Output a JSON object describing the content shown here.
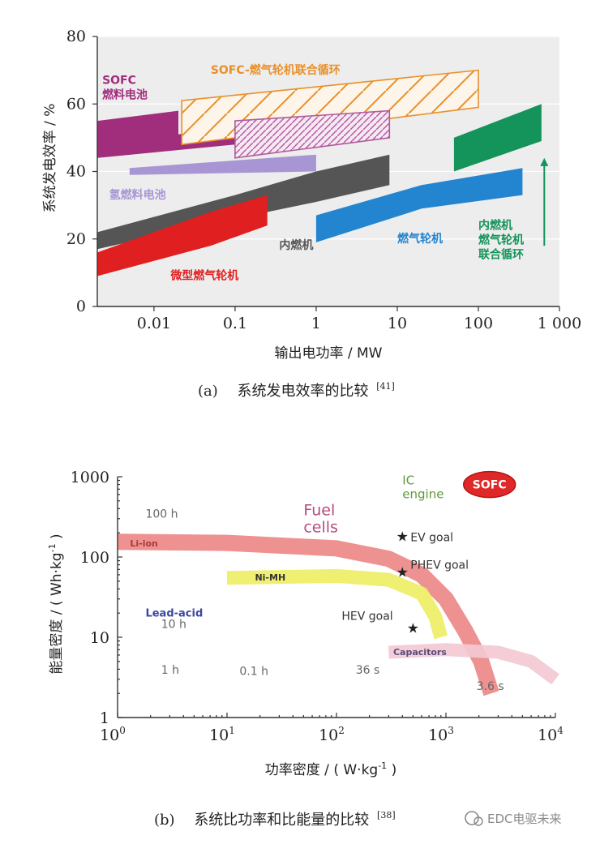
{
  "chart_data": [
    {
      "type": "area",
      "caption_prefix": "(a)",
      "caption": "系统发电效率的比较",
      "caption_ref": "[41]",
      "xlabel": "输出电功率 / MW",
      "ylabel": "系统发电效率 / %",
      "x_scale": "log",
      "xlim": [
        0.002,
        1000
      ],
      "ylim": [
        0,
        80
      ],
      "x_ticks": [
        {
          "value": 0.01,
          "label": "0.01"
        },
        {
          "value": 0.1,
          "label": "0.1"
        },
        {
          "value": 1,
          "label": "1"
        },
        {
          "value": 10,
          "label": "10"
        },
        {
          "value": 100,
          "label": "100"
        },
        {
          "value": 1000,
          "label": "1 000"
        }
      ],
      "y_ticks": [
        {
          "value": 0,
          "label": "0"
        },
        {
          "value": 20,
          "label": "20"
        },
        {
          "value": 40,
          "label": "40"
        },
        {
          "value": 60,
          "label": "60"
        },
        {
          "value": 80,
          "label": "80"
        }
      ],
      "grid": true,
      "series": [
        {
          "name": "SOFC燃料电池",
          "label_lines": [
            "SOFC",
            "燃料电池"
          ],
          "color": "#a12d7d",
          "style": "solid",
          "polygon": [
            [
              0.002,
              55
            ],
            [
              0.02,
              58
            ],
            [
              0.02,
              51
            ],
            [
              0.1,
              54
            ],
            [
              0.1,
              48
            ],
            [
              0.002,
              44
            ]
          ],
          "label_at": [
            0.0023,
            66
          ]
        },
        {
          "name": "SOFC-燃气轮机联合循环",
          "label_lines": [
            "SOFC-燃气轮机联合循环"
          ],
          "color": "#e8902a",
          "style": "hatch",
          "polygon": [
            [
              0.022,
              61
            ],
            [
              100,
              70
            ],
            [
              100,
              59
            ],
            [
              0.022,
              48
            ]
          ],
          "label_at": [
            0.05,
            69
          ]
        },
        {
          "name": "",
          "label_lines": [],
          "color": "#b25a9d",
          "style": "hatch",
          "polygon": [
            [
              0.1,
              55
            ],
            [
              8,
              58
            ],
            [
              8,
              50
            ],
            [
              0.1,
              44
            ]
          ],
          "label_at": null
        },
        {
          "name": "氢燃料电池",
          "label_lines": [
            "氢燃料电池"
          ],
          "color": "#a896d4",
          "style": "solid",
          "polygon": [
            [
              0.005,
              41
            ],
            [
              1,
              45
            ],
            [
              1,
              40
            ],
            [
              0.005,
              39
            ]
          ],
          "label_at": [
            0.0028,
            32
          ]
        },
        {
          "name": "内燃机",
          "label_lines": [
            "内燃机"
          ],
          "color": "#555555",
          "style": "solid",
          "polygon": [
            [
              0.002,
              22
            ],
            [
              0.1,
              33
            ],
            [
              1,
              40
            ],
            [
              8,
              45
            ],
            [
              8,
              36
            ],
            [
              1,
              31
            ],
            [
              0.1,
              26
            ],
            [
              0.002,
              17
            ]
          ],
          "label_at": [
            0.35,
            17
          ]
        },
        {
          "name": "微型燃气轮机",
          "label_lines": [
            "微型燃气轮机"
          ],
          "color": "#e02020",
          "style": "solid",
          "polygon": [
            [
              0.002,
              16
            ],
            [
              0.05,
              28
            ],
            [
              0.25,
              33
            ],
            [
              0.25,
              24
            ],
            [
              0.05,
              18
            ],
            [
              0.002,
              9
            ]
          ],
          "label_at": [
            0.016,
            8
          ]
        },
        {
          "name": "燃气轮机",
          "label_lines": [
            "燃气轮机"
          ],
          "color": "#2384cf",
          "style": "solid",
          "polygon": [
            [
              1,
              27
            ],
            [
              20,
              36
            ],
            [
              350,
              41
            ],
            [
              350,
              33
            ],
            [
              20,
              29
            ],
            [
              1,
              19
            ]
          ],
          "label_at": [
            10,
            19
          ]
        },
        {
          "name": "内燃机燃气轮机联合循环",
          "label_lines": [
            "内燃机",
            "燃气轮机",
            "联合循环"
          ],
          "color": "#14935a",
          "style": "solid",
          "polygon": [
            [
              50,
              50
            ],
            [
              600,
              60
            ],
            [
              600,
              49
            ],
            [
              50,
              40
            ]
          ],
          "label_at": [
            100,
            23
          ]
        }
      ],
      "annotations": [
        {
          "type": "arrow",
          "color": "#14935a",
          "from": [
            650,
            18
          ],
          "to": [
            650,
            44
          ]
        }
      ]
    },
    {
      "type": "line",
      "caption_prefix": "(b)",
      "caption": "系统比功率和比能量的比较",
      "caption_ref": "[38]",
      "xlabel": "功率密度 / ( W·kg",
      "xlabel_sup": "-1",
      "xlabel_end": " )",
      "ylabel": "能量密度 / ( Wh·kg",
      "ylabel_sup": "-1",
      "ylabel_end": " )",
      "x_scale": "log",
      "y_scale": "log",
      "xlim": [
        1,
        10000
      ],
      "ylim": [
        1,
        1000
      ],
      "x_ticks": [
        {
          "value": 1,
          "base": "10",
          "exp": "0"
        },
        {
          "value": 10,
          "base": "10",
          "exp": "1"
        },
        {
          "value": 100,
          "base": "10",
          "exp": "2"
        },
        {
          "value": 1000,
          "base": "10",
          "exp": "3"
        },
        {
          "value": 10000,
          "base": "10",
          "exp": "4"
        }
      ],
      "y_ticks": [
        {
          "value": 1,
          "label": "1"
        },
        {
          "value": 10,
          "label": "10"
        },
        {
          "value": 100,
          "label": "100"
        },
        {
          "value": 1000,
          "label": "1000"
        }
      ],
      "series": [
        {
          "name": "Li-ion",
          "color": "#ec8888",
          "width": 20,
          "points": [
            [
              1,
              155
            ],
            [
              10,
              150
            ],
            [
              100,
              128
            ],
            [
              300,
              95
            ],
            [
              600,
              60
            ],
            [
              1000,
              30
            ],
            [
              1500,
              12
            ],
            [
              2100,
              5
            ],
            [
              2600,
              2
            ]
          ],
          "label_at": [
            1.3,
            148
          ]
        },
        {
          "name": "Ni-MH",
          "color": "#eeee66",
          "width": 17,
          "points": [
            [
              10,
              55
            ],
            [
              100,
              58
            ],
            [
              300,
              52
            ],
            [
              600,
              35
            ],
            [
              800,
              18
            ],
            [
              900,
              10
            ]
          ],
          "label_at": [
            18,
            56
          ]
        },
        {
          "name": "Capacitors",
          "color": "#f3c9d4",
          "width": 16,
          "points": [
            [
              300,
              6.5
            ],
            [
              1000,
              7
            ],
            [
              3000,
              6.5
            ],
            [
              6000,
              5
            ],
            [
              10000,
              3
            ]
          ],
          "label_at": [
            330,
            6.6
          ]
        }
      ],
      "goals": [
        {
          "name": "EV goal",
          "x": 400,
          "y": 180
        },
        {
          "name": "PHEV goal",
          "x": 400,
          "y": 65
        },
        {
          "name": "HEV goal",
          "x": 500,
          "y": 13
        }
      ],
      "texts": [
        {
          "id": "fuel",
          "lines": [
            "Fuel",
            "cells"
          ],
          "color": "#b84b7c",
          "size": 19,
          "at": [
            50,
            330
          ]
        },
        {
          "id": "ic",
          "lines": [
            "IC",
            "engine"
          ],
          "color": "#5e9a3c",
          "size": 15,
          "at": [
            400,
            800
          ]
        },
        {
          "id": "lead",
          "lines": [
            "Lead-acid"
          ],
          "color": "#3b48a1",
          "size": 13,
          "at": [
            1.8,
            18
          ]
        },
        {
          "id": "t100h",
          "lines": [
            "100 h"
          ],
          "color": "#666666",
          "size": 14,
          "at": [
            1.8,
            310
          ]
        },
        {
          "id": "t10h",
          "lines": [
            "10 h"
          ],
          "color": "#666666",
          "size": 14,
          "at": [
            2.5,
            13
          ]
        },
        {
          "id": "t1h",
          "lines": [
            "1 h"
          ],
          "color": "#666666",
          "size": 14,
          "at": [
            2.5,
            3.5
          ]
        },
        {
          "id": "t01h",
          "lines": [
            "0.1 h"
          ],
          "color": "#666666",
          "size": 14,
          "at": [
            13,
            3.4
          ]
        },
        {
          "id": "t36s",
          "lines": [
            "36 s"
          ],
          "color": "#666666",
          "size": 14,
          "at": [
            150,
            3.5
          ]
        },
        {
          "id": "t36s2",
          "lines": [
            "3.6 s"
          ],
          "color": "#666666",
          "size": 14,
          "at": [
            1900,
            2.2
          ]
        }
      ],
      "sofc_badge": {
        "label": "SOFC",
        "color": "#e02828",
        "at": [
          2500,
          800
        ]
      }
    }
  ],
  "watermark": "EDC电驱未来"
}
